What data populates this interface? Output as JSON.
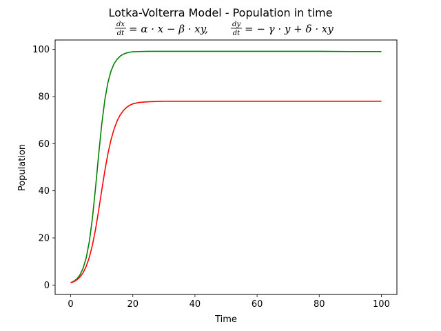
{
  "chart_data": {
    "type": "line",
    "title": "Lotka-Volterra Model - Population in time",
    "subtitle": {
      "eq1_num": "dx",
      "eq1_den": "dt",
      "eq1_rhs": "= α · x − β · xy,",
      "eq2_num": "dy",
      "eq2_den": "dt",
      "eq2_rhs": "= − γ · y + δ · xy"
    },
    "xlabel": "Time",
    "ylabel": "Population",
    "xlim": [
      -5,
      105
    ],
    "ylim": [
      -4,
      104
    ],
    "xticks": [
      0,
      20,
      40,
      60,
      80,
      100
    ],
    "yticks": [
      0,
      20,
      40,
      60,
      80,
      100
    ],
    "grid": false,
    "series": [
      {
        "color": "#008000",
        "x": [
          0,
          1,
          2,
          3,
          4,
          5,
          6,
          7,
          8,
          9,
          10,
          11,
          12,
          13,
          14,
          15,
          16,
          17,
          18,
          19,
          20,
          22,
          25,
          30,
          35,
          40,
          50,
          60,
          70,
          80,
          90,
          100
        ],
        "y": [
          1.0,
          1.6,
          2.6,
          4.3,
          7.1,
          11.5,
          18.4,
          28.3,
          41.2,
          55.3,
          68.2,
          78.6,
          86.0,
          90.9,
          94.0,
          95.9,
          97.2,
          98.0,
          98.5,
          98.8,
          99.0,
          99.1,
          99.2,
          99.2,
          99.2,
          99.2,
          99.2,
          99.2,
          99.2,
          99.2,
          99.1,
          99.1
        ]
      },
      {
        "color": "#ff0000",
        "x": [
          0,
          1,
          2,
          3,
          4,
          5,
          6,
          7,
          8,
          9,
          10,
          11,
          12,
          13,
          14,
          15,
          16,
          17,
          18,
          19,
          20,
          22,
          25,
          30,
          35,
          40,
          50,
          60,
          70,
          80,
          90,
          100
        ],
        "y": [
          1.0,
          1.4,
          2.2,
          3.4,
          5.2,
          7.9,
          11.7,
          16.9,
          23.6,
          31.6,
          40.2,
          48.5,
          55.8,
          61.7,
          66.3,
          69.8,
          72.3,
          74.1,
          75.4,
          76.3,
          76.9,
          77.5,
          77.8,
          78.0,
          78.0,
          78.0,
          78.0,
          78.0,
          78.0,
          78.0,
          78.0,
          78.0
        ]
      }
    ]
  }
}
